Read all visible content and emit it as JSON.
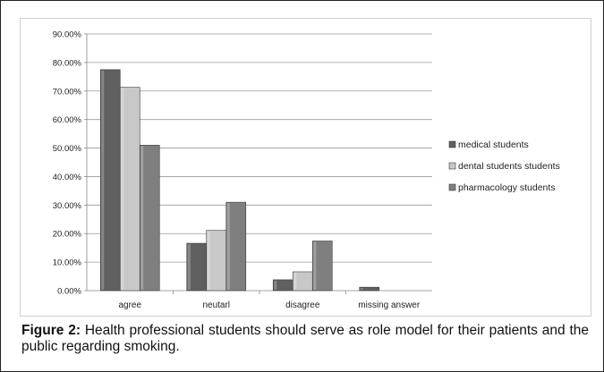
{
  "chart_data": {
    "type": "bar",
    "categories": [
      "agree",
      "neutarl",
      "disagree",
      "missing answer"
    ],
    "series": [
      {
        "name": "medical students",
        "values": [
          77.5,
          16.6,
          3.8,
          1.2
        ],
        "color": "#606060"
      },
      {
        "name": "dental students students",
        "values": [
          71.3,
          21.1,
          6.6,
          0
        ],
        "color": "#c8c8c8"
      },
      {
        "name": "pharmacology students",
        "values": [
          51.0,
          31.0,
          17.4,
          0
        ],
        "color": "#7f7f7f"
      }
    ],
    "ylim": [
      0,
      90
    ],
    "yticks": [
      "0.00%",
      "10.00%",
      "20.00%",
      "30.00%",
      "40.00%",
      "50.00%",
      "60.00%",
      "70.00%",
      "80.00%",
      "90.00%"
    ],
    "grid": true,
    "legend": "right"
  },
  "caption": {
    "label": "Figure 2:",
    "text": " Health professional students should serve as role model for their patients and the public regarding smoking."
  }
}
